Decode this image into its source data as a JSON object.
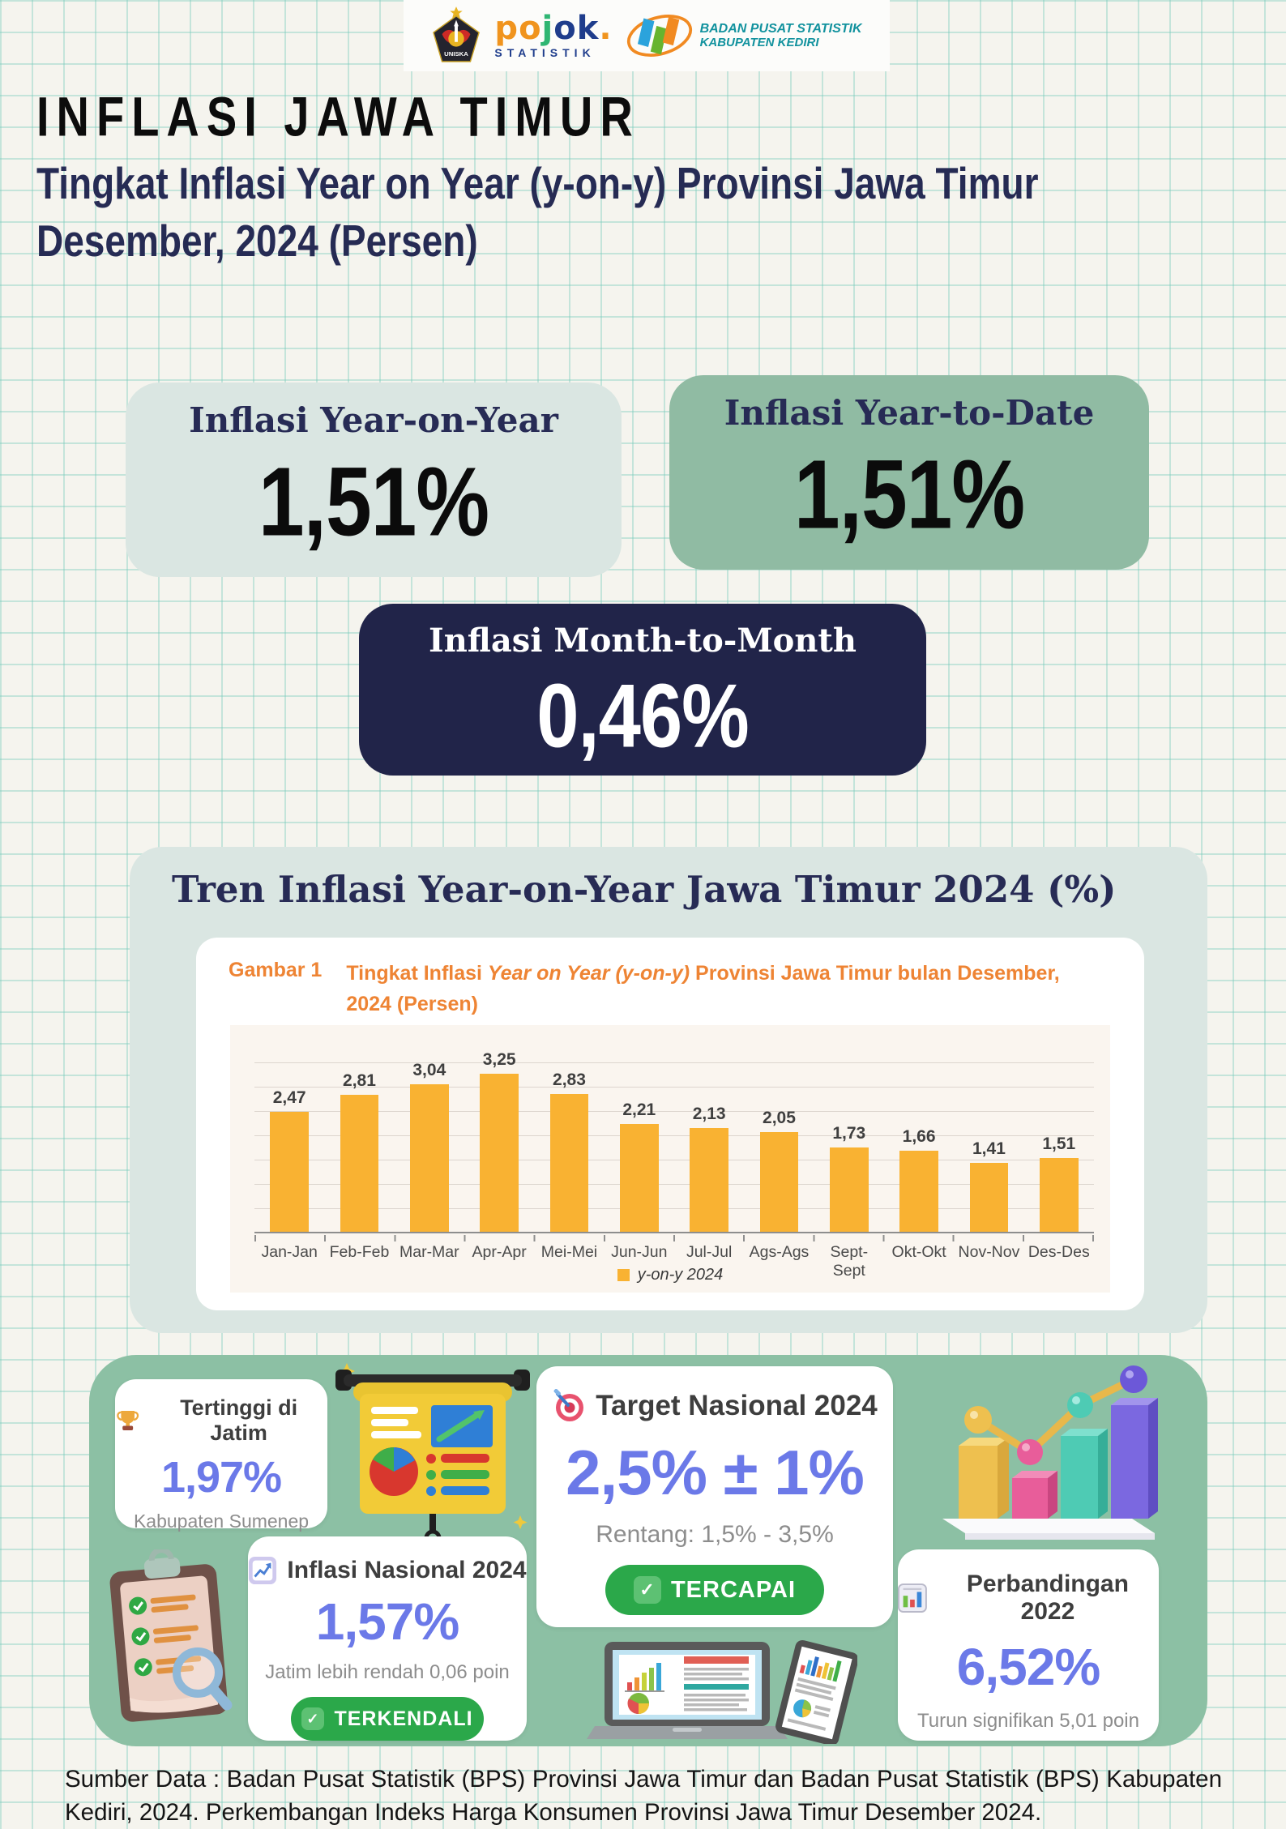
{
  "header": {
    "uniska": {
      "caption": "UNISKA"
    },
    "pojok": {
      "letters": [
        {
          "ch": "p"
        },
        {
          "ch": "o"
        },
        {
          "ch": "j"
        },
        {
          "ch": "o"
        },
        {
          "ch": "k"
        },
        {
          "ch": "."
        }
      ],
      "sub": "STATISTIK"
    },
    "bps": {
      "line1": "BADAN PUSAT STATISTIK",
      "line2": "KABUPATEN KEDIRI"
    }
  },
  "title": "INFLASI JAWA TIMUR",
  "subtitle_line1": "Tingkat Inflasi Year on Year (y-on-y) Provinsi Jawa Timur",
  "subtitle_line2": "Desember, 2024 (Persen)",
  "stat_cards": {
    "yoy": {
      "label": "Inflasi Year-on-Year",
      "value": "1,51%"
    },
    "ytd": {
      "label": "Inflasi Year-to-Date",
      "value": "1,51%"
    },
    "mtm": {
      "label": "Inflasi Month-to-Month",
      "value": "0,46%"
    }
  },
  "chart_section": {
    "title": "Tren Inflasi Year-on-Year Jawa Timur 2024 (%)",
    "caption_label": "Gambar 1",
    "caption_pre": "Tingkat Inflasi ",
    "caption_italic1": "Year on Year",
    "caption_mid": " ",
    "caption_italic2": "(y-on-y)",
    "caption_post": " Provinsi Jawa Timur bulan Desember, 2024 (Persen)",
    "legend_label": "y-on-y 2024"
  },
  "chart_data": {
    "type": "bar",
    "title": "Tingkat Inflasi Year on Year (y-on-y) Provinsi Jawa Timur bulan Desember, 2024 (Persen)",
    "categories": [
      "Jan-Jan",
      "Feb-Feb",
      "Mar-Mar",
      "Apr-Apr",
      "Mei-Mei",
      "Jun-Jun",
      "Jul-Jul",
      "Ags-Ags",
      "Sept-Sept",
      "Okt-Okt",
      "Nov-Nov",
      "Des-Des"
    ],
    "values": [
      2.47,
      2.81,
      3.04,
      3.25,
      2.83,
      2.21,
      2.13,
      2.05,
      1.73,
      1.66,
      1.41,
      1.51
    ],
    "value_labels": [
      "2,47",
      "2,81",
      "3,04",
      "3,25",
      "2,83",
      "2,21",
      "2,13",
      "2,05",
      "1,73",
      "1,66",
      "1,41",
      "1,51"
    ],
    "series_name": "y-on-y 2024",
    "xlabel": "",
    "ylabel": "",
    "ylim": [
      0,
      3.5
    ],
    "grid": true,
    "gridline_step": 0.5,
    "legend_position": "bottom",
    "bar_color": "#F9B232"
  },
  "highlights": {
    "tertinggi": {
      "label": "Tertinggi di Jatim",
      "value": "1,97%",
      "subtext": "Kabupaten Sumenep"
    },
    "target": {
      "label": "Target Nasional 2024",
      "value": "2,5% ± 1%",
      "subtext": "Rentang: 1,5% - 3,5%",
      "badge": "TERCAPAI",
      "check": "✓"
    },
    "nasional": {
      "label": "Inflasi Nasional 2024",
      "value": "1,57%",
      "subtext": "Jatim lebih rendah 0,06 poin",
      "badge": "TERKENDALI",
      "check": "✓"
    },
    "perbandingan": {
      "label": "Perbandingan 2022",
      "value": "6,52%",
      "subtext": "Turun signifikan 5,01 poin"
    }
  },
  "footer": {
    "source": "Sumber Data : Badan Pusat Statistik (BPS) Provinsi Jawa Timur dan Badan Pusat Statistik (BPS) Kabupaten Kediri, 2024. Perkembangan Indeks Harga Konsumen Provinsi Jawa Timur Desember 2024."
  },
  "colors": {
    "bar": "#F9B232",
    "accent_blue": "#6B79E8",
    "badge_green": "#2BA84A",
    "panel_green": "#8CC0A4",
    "navy": "#272B55",
    "dark_card": "#212449",
    "caption_orange": "#EE8434",
    "mint_card": "#DAE6E2",
    "green_card": "#90BBA3"
  }
}
